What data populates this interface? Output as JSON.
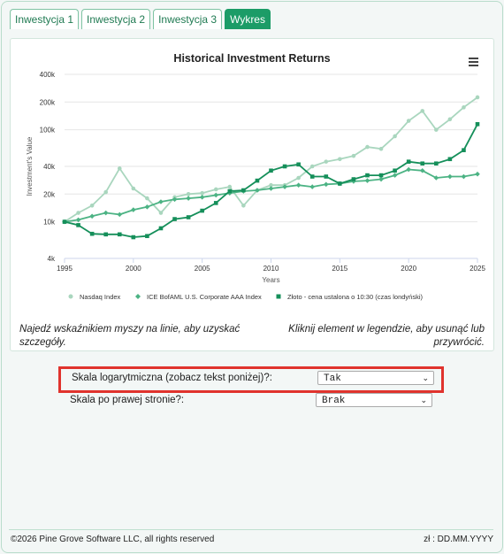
{
  "tabs": [
    {
      "label": "Inwestycja 1"
    },
    {
      "label": "Inwestycja 2"
    },
    {
      "label": "Inwestycja 3"
    },
    {
      "label": "Wykres"
    }
  ],
  "menu_icon": "hamburger-icon",
  "chart_data": {
    "type": "line",
    "title": "Historical Investment Returns",
    "xlabel": "Years",
    "ylabel": "Investment's Value",
    "yscale": "log",
    "ylim": [
      4000,
      400000
    ],
    "xlim": [
      1995,
      2025
    ],
    "x_ticks": [
      "1995",
      "2000",
      "2005",
      "2010",
      "2015",
      "2020",
      "2025"
    ],
    "y_ticks": [
      {
        "value": 400000,
        "label": "400k"
      },
      {
        "value": 200000,
        "label": "200k"
      },
      {
        "value": 100000,
        "label": "100k"
      },
      {
        "value": 40000,
        "label": "40k"
      },
      {
        "value": 20000,
        "label": "20k"
      },
      {
        "value": 10000,
        "label": "10k"
      },
      {
        "value": 4000,
        "label": "4k"
      }
    ],
    "legend_position": "bottom",
    "x": [
      1995,
      1996,
      1997,
      1998,
      1999,
      2000,
      2001,
      2002,
      2003,
      2004,
      2005,
      2006,
      2007,
      2008,
      2009,
      2010,
      2011,
      2012,
      2013,
      2014,
      2015,
      2016,
      2017,
      2018,
      2019,
      2020,
      2021,
      2022,
      2023,
      2024,
      2025
    ],
    "series": [
      {
        "name": "Nasdaq Index",
        "color": "#a9d6be",
        "marker": "circle",
        "values": [
          10000,
          12500,
          15000,
          21000,
          38000,
          23000,
          18000,
          12500,
          18500,
          20000,
          20500,
          22500,
          24000,
          15000,
          22000,
          25000,
          25000,
          30000,
          40000,
          45000,
          48000,
          52000,
          65000,
          62000,
          85000,
          125000,
          160000,
          100000,
          130000,
          175000,
          225000
        ]
      },
      {
        "name": "ICE BofAML U.S. Corporate AAA Index",
        "color": "#4cb384",
        "marker": "diamond",
        "values": [
          10000,
          10500,
          11500,
          12500,
          12000,
          13500,
          14500,
          16500,
          17500,
          18000,
          18500,
          19500,
          20500,
          21500,
          22000,
          23000,
          24000,
          25000,
          24000,
          25500,
          26000,
          27500,
          28000,
          29000,
          32000,
          37000,
          36000,
          30000,
          31000,
          31000,
          33000
        ]
      },
      {
        "name": "Złoto - cena ustalona o 10:30 (czas londyński)",
        "color": "#158f5a",
        "marker": "square",
        "values": [
          10000,
          9200,
          7400,
          7300,
          7300,
          6800,
          7000,
          8500,
          10700,
          11200,
          13200,
          16000,
          21500,
          22000,
          28000,
          36000,
          40000,
          42000,
          31000,
          31000,
          26000,
          29000,
          32000,
          32000,
          36000,
          45000,
          43000,
          43000,
          48000,
          60000,
          115000
        ]
      }
    ]
  },
  "hints": {
    "left": "Najedź wskaźnikiem myszy na linie, aby uzyskać szczegóły.",
    "right": "Kliknij element w legendzie, aby usunąć lub przywrócić."
  },
  "options": {
    "log_scale": {
      "label": "Skala logarytmiczna (zobacz tekst poniżej)?:",
      "value": "Tak"
    },
    "right_side": {
      "label": "Skala po prawej stronie?:",
      "value": "Brak"
    }
  },
  "footer": {
    "copyright": "©2026 Pine Grove Software LLC, all rights reserved",
    "date": "zł : DD.MM.YYYY"
  }
}
